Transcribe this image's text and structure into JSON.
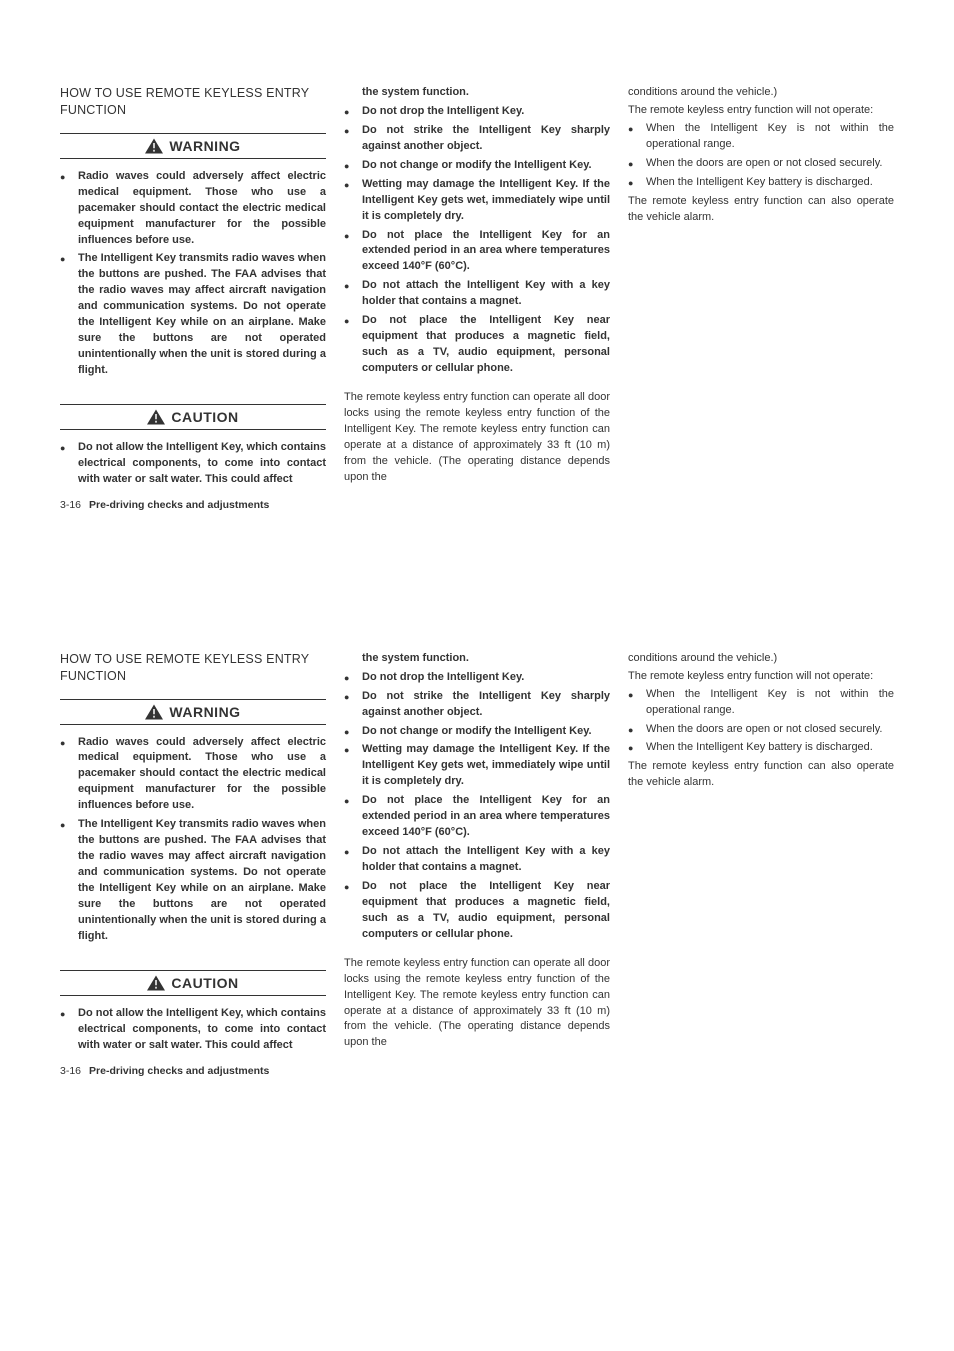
{
  "section_title": "HOW TO USE REMOTE KEYLESS ENTRY FUNCTION",
  "warning_label": "WARNING",
  "caution_label": "CAUTION",
  "warning_items": [
    "Radio waves could adversely affect electric medical equipment. Those who use a pacemaker should contact the electric medical equipment manufacturer for the possible influences before use.",
    "The Intelligent Key transmits radio waves when the buttons are pushed. The FAA advises that the radio waves may affect aircraft navigation and communication systems. Do not operate the Intelligent Key while on an airplane. Make sure the buttons are not operated unintentionally when the unit is stored during a flight."
  ],
  "caution_items_col1": [
    "Do not allow the Intelligent Key, which contains electrical components, to come into contact with water or salt water. This could affect"
  ],
  "caution_continuation": "the system function.",
  "caution_items_col2": [
    "Do not drop the Intelligent Key.",
    "Do not strike the Intelligent Key sharply against another object.",
    "Do not change or modify the Intelligent Key.",
    "Wetting may damage the Intelligent Key. If the Intelligent Key gets wet, immediately wipe until it is completely dry.",
    "Do not place the Intelligent Key for an extended period in an area where temperatures exceed 140°F (60°C).",
    "Do not attach the Intelligent Key with a key holder that contains a magnet.",
    "Do not place the Intelligent Key near equipment that produces a magnetic field, such as a TV, audio equipment, personal computers or cellular phone."
  ],
  "para_col2": "The remote keyless entry function can operate all door locks using the remote keyless entry function of the Intelligent Key. The remote keyless entry function can operate at a distance of approximately 33 ft (10 m) from the vehicle. (The operating distance depends upon the",
  "para_col3_cont": "conditions around the vehicle.)",
  "para_col3_intro": "The remote keyless entry function will not operate:",
  "col3_items": [
    "When the Intelligent Key is not within the operational range.",
    "When the doors are open or not closed securely.",
    "When the Intelligent Key battery is discharged."
  ],
  "para_col3_end": "The remote keyless entry function can also operate the vehicle alarm.",
  "footer_page": "3-16",
  "footer_chapter": "Pre-driving checks and adjustments"
}
